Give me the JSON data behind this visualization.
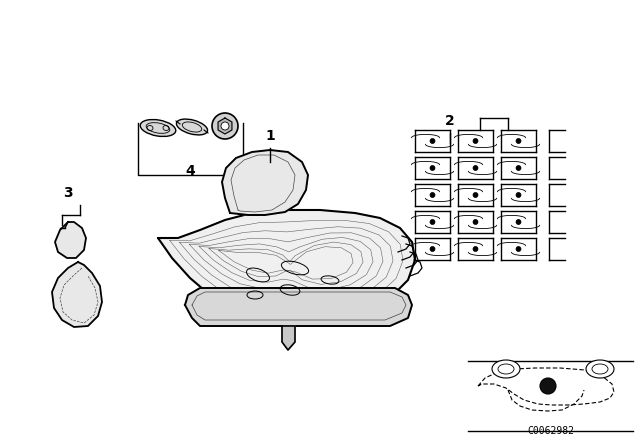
{
  "bg_color": "#ffffff",
  "line_color": "#000000",
  "catalog_code": "C0062982",
  "label_fontsize": 10,
  "catalog_fontsize": 7,
  "parts": {
    "seat_frame_color": "#f0f0f0",
    "bracket_color": "#e8e8e8",
    "hardware_color": "#e0e0e0",
    "dot_color": "#111111"
  }
}
